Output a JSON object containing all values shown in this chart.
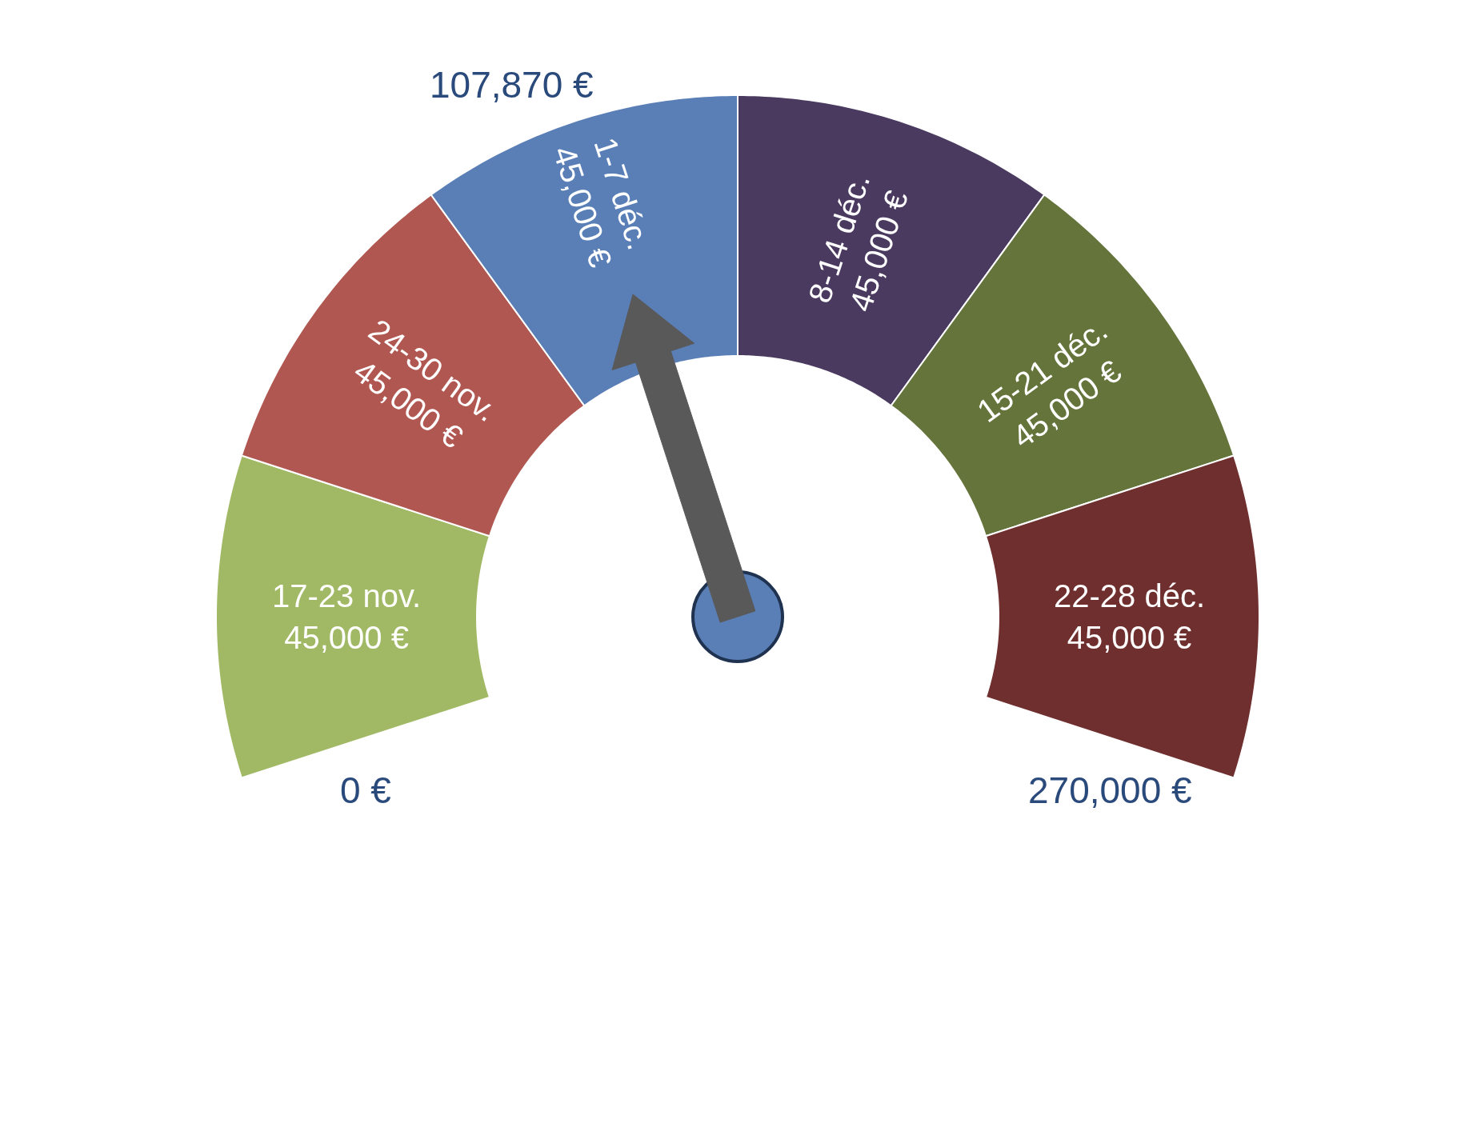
{
  "chart_data": {
    "type": "donut",
    "categories": [
      "17-23 nov.",
      "24-30 nov.",
      "1-7 déc.",
      "8-14 déc.",
      "15-21 déc.",
      "22-28 déc."
    ],
    "values": [
      45000,
      45000,
      45000,
      45000,
      45000,
      45000
    ],
    "value_labels": [
      "45,000 €",
      "45,000 €",
      "45,000 €",
      "45,000 €",
      "45,000 €",
      "45,000 €"
    ],
    "colors": [
      "#a1b964",
      "#b15751",
      "#5a7fb7",
      "#4a3a5f",
      "#64743b",
      "#6e2f2e"
    ],
    "needle": "1-7 déc.",
    "annotations": [
      "107,870 €",
      "0 €",
      "270,000 €"
    ]
  }
}
